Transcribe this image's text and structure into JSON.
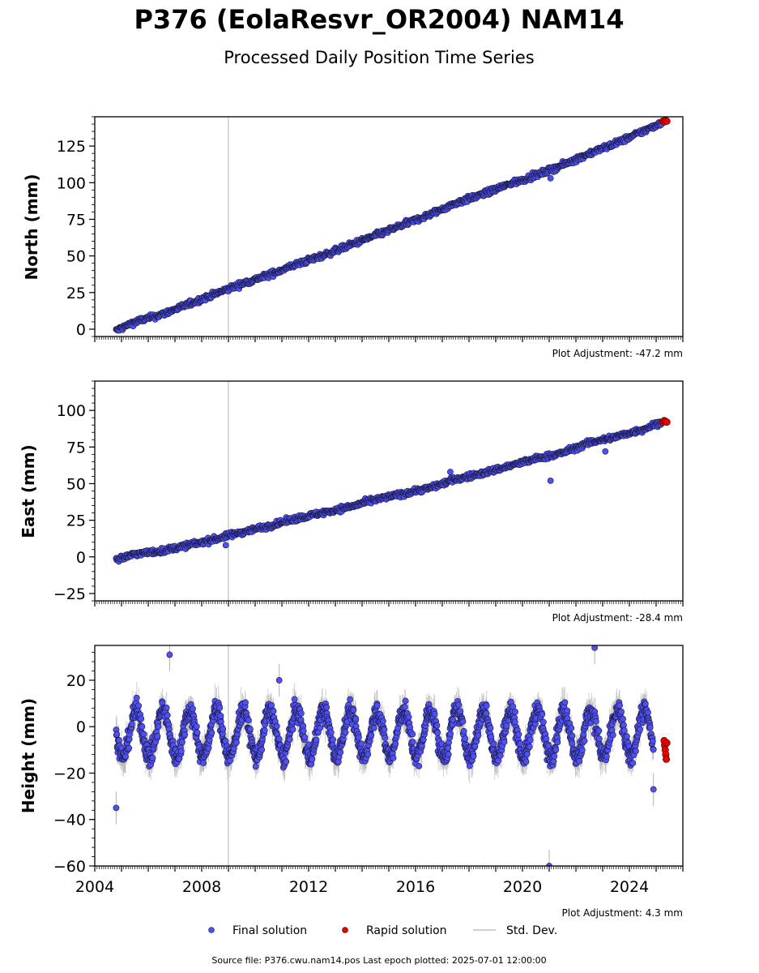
{
  "title": "P376 (EolaResvr_OR2004) NAM14",
  "subtitle": "Processed Daily Position Time Series",
  "source_line": "Source file: P376.cwu.nam14.pos  Last epoch plotted: 2025-07-01 12:00:00",
  "legend": {
    "final": "Final solution",
    "rapid": "Rapid solution",
    "std": "Std. Dev."
  },
  "colors": {
    "final_fill": "#4f4ff2",
    "final_edge": "#1a1a40",
    "rapid_fill": "#e60000",
    "std_line": "#b0b0b0",
    "vline": "#cccccc"
  },
  "chart_data": [
    {
      "type": "scatter",
      "ylabel": "North (mm)",
      "adjustment": "Plot Adjustment: -47.2 mm",
      "xlim": [
        2004,
        2026
      ],
      "ylim": [
        -5,
        145
      ],
      "yticks": [
        0,
        25,
        50,
        75,
        100,
        125
      ],
      "ytick_labels": [
        "0",
        "25",
        "50",
        "75",
        "100",
        "125"
      ],
      "vertical_line_x": 2009.0,
      "series": [
        {
          "name": "Final solution",
          "x": [
            2004.8,
            2005.5,
            2006.5,
            2007.5,
            2008.5,
            2009.5,
            2010.5,
            2011.5,
            2012.5,
            2013.5,
            2014.5,
            2015.5,
            2016.5,
            2017.5,
            2018.5,
            2019.5,
            2020.5,
            2021.5,
            2022.5,
            2023.5,
            2024.5,
            2025.2
          ],
          "y": [
            -1,
            5,
            10,
            17,
            24,
            31,
            37,
            44,
            50,
            57,
            64,
            71,
            78,
            86,
            92,
            99,
            105,
            112,
            120,
            127,
            135,
            141
          ]
        },
        {
          "name": "Rapid solution",
          "x": [
            2025.25,
            2025.3,
            2025.35,
            2025.4
          ],
          "y": [
            142,
            141.5,
            142.5,
            142
          ]
        }
      ],
      "outliers": {
        "x": [
          2021.05
        ],
        "y": [
          103
        ]
      }
    },
    {
      "type": "scatter",
      "ylabel": "East (mm)",
      "adjustment": "Plot Adjustment: -28.4 mm",
      "xlim": [
        2004,
        2026
      ],
      "ylim": [
        -30,
        120
      ],
      "yticks": [
        -25,
        0,
        25,
        50,
        75,
        100
      ],
      "ytick_labels": [
        "−25",
        "0",
        "25",
        "50",
        "75",
        "100"
      ],
      "vertical_line_x": 2009.0,
      "series": [
        {
          "name": "Final solution",
          "x": [
            2004.8,
            2005.5,
            2006.5,
            2007.5,
            2008.5,
            2009.5,
            2010.5,
            2011.5,
            2012.5,
            2013.5,
            2014.5,
            2015.5,
            2016.5,
            2017.5,
            2018.5,
            2019.5,
            2020.5,
            2021.5,
            2022.5,
            2023.5,
            2024.5,
            2025.2
          ],
          "y": [
            -2,
            2,
            4,
            8,
            12,
            17,
            21,
            26,
            30,
            34,
            39,
            43,
            47,
            53,
            57,
            62,
            67,
            71,
            78,
            82,
            87,
            92
          ]
        },
        {
          "name": "Rapid solution",
          "x": [
            2025.25,
            2025.3,
            2025.35,
            2025.4
          ],
          "y": [
            92,
            93,
            92.5,
            92
          ]
        }
      ],
      "outliers": {
        "x": [
          2008.9,
          2017.3,
          2021.05,
          2023.1
        ],
        "y": [
          8,
          58,
          52,
          72
        ]
      }
    },
    {
      "type": "scatter",
      "ylabel": "Height (mm)",
      "adjustment": "Plot Adjustment: 4.3 mm",
      "xlim": [
        2004,
        2026
      ],
      "ylim": [
        -60,
        35
      ],
      "yticks": [
        -60,
        -40,
        -20,
        0,
        20
      ],
      "ytick_labels": [
        "−60",
        "−40",
        "−20",
        "0",
        "20"
      ],
      "xticks": [
        2004,
        2008,
        2012,
        2016,
        2020,
        2024
      ],
      "xtick_labels": [
        "2004",
        "2008",
        "2012",
        "2016",
        "2020",
        "2024"
      ],
      "vertical_line_x": 2009.0,
      "series": [
        {
          "name": "Final solution",
          "seasonal_mean": -3,
          "seasonal_amplitude": 10,
          "x": [
            2004.8,
            2006.8,
            2010.9,
            2021.0,
            2022.7,
            2024.9
          ],
          "y": [
            -35,
            31,
            20,
            -60,
            34,
            -27
          ]
        },
        {
          "name": "Rapid solution",
          "x": [
            2025.3,
            2025.32,
            2025.34,
            2025.36,
            2025.38,
            2025.4
          ],
          "y": [
            -6,
            -8,
            -10,
            -12,
            -14,
            -7
          ]
        }
      ]
    }
  ]
}
